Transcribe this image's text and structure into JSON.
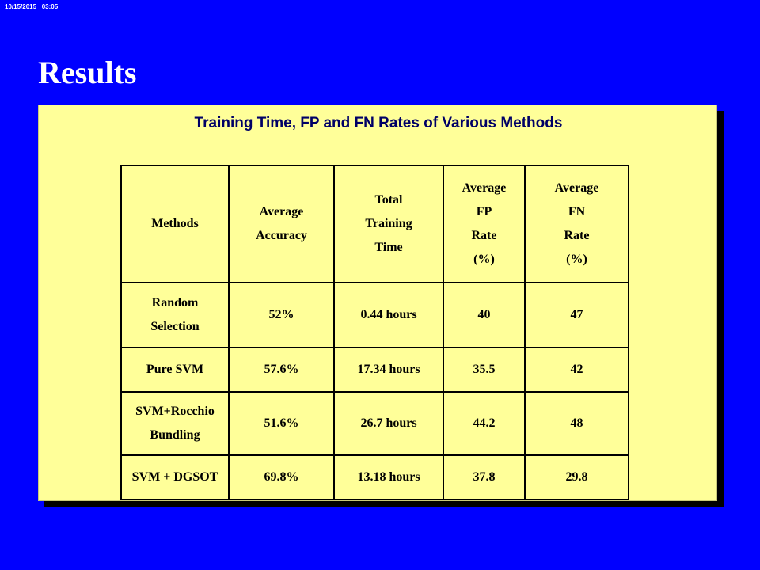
{
  "timestamp": "10/15/2015   03:05",
  "slide": {
    "title": "Results"
  },
  "panel": {
    "heading": "Training Time, FP and FN Rates  of Various Methods"
  },
  "table": {
    "headers": [
      {
        "lines": [
          "Methods"
        ]
      },
      {
        "lines": [
          "Average",
          "Accuracy"
        ]
      },
      {
        "lines": [
          "Total",
          "Training",
          "Time"
        ]
      },
      {
        "lines": [
          "Average",
          "FP",
          "Rate",
          "(%)"
        ]
      },
      {
        "lines": [
          "Average",
          "FN",
          "Rate",
          "(%)"
        ]
      }
    ],
    "rows": [
      {
        "method": [
          "Random",
          "Selection"
        ],
        "accuracy": "52%",
        "time": "0.44 hours",
        "fp": "40",
        "fn": "47"
      },
      {
        "method": [
          "Pure SVM"
        ],
        "accuracy": "57.6%",
        "time": "17.34 hours",
        "fp": "35.5",
        "fn": "42"
      },
      {
        "method": [
          "SVM+Rocchio",
          "Bundling"
        ],
        "accuracy": "51.6%",
        "time": "26.7 hours",
        "fp": "44.2",
        "fn": "48"
      },
      {
        "method": [
          "SVM + DGSOT"
        ],
        "accuracy": "69.8%",
        "time": "13.18 hours",
        "fp": "37.8",
        "fn": "29.8"
      }
    ]
  },
  "colors": {
    "background": "#0000ff",
    "panel": "#ffff99",
    "heading": "#000066",
    "title": "#ffffff"
  }
}
